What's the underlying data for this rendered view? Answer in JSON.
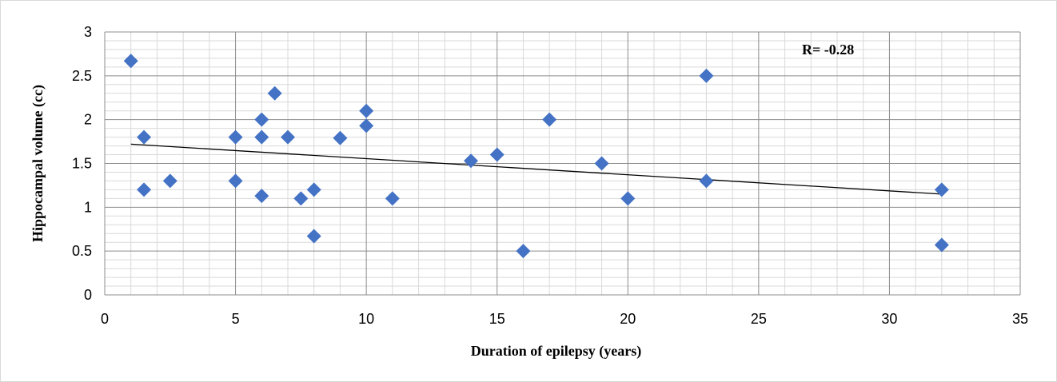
{
  "chart_data": {
    "type": "scatter",
    "xlabel": "Duration of epilepsy (years)",
    "ylabel": "Hippocampal volume (cc)",
    "xlim": [
      0,
      35
    ],
    "ylim": [
      0,
      3
    ],
    "x_ticks": [
      0,
      5,
      10,
      15,
      20,
      25,
      30,
      35
    ],
    "y_ticks": [
      0,
      0.5,
      1,
      1.5,
      2,
      2.5,
      3
    ],
    "x_tick_labels": [
      "0",
      "5",
      "10",
      "15",
      "20",
      "25",
      "30",
      "35"
    ],
    "y_tick_labels": [
      "0",
      "0.5",
      "1",
      "1.5",
      "2",
      "2.5",
      "3"
    ],
    "grid": true,
    "annotation": "R= -0.28",
    "marker": "diamond",
    "marker_color": "#4472c4",
    "trendline": {
      "type": "linear",
      "x": [
        1,
        32
      ],
      "y": [
        1.72,
        1.15
      ]
    },
    "points": [
      {
        "x": 1,
        "y": 2.67
      },
      {
        "x": 1.5,
        "y": 1.8
      },
      {
        "x": 1.5,
        "y": 1.2
      },
      {
        "x": 2.5,
        "y": 1.3
      },
      {
        "x": 5,
        "y": 1.8
      },
      {
        "x": 5,
        "y": 1.3
      },
      {
        "x": 6,
        "y": 2.0
      },
      {
        "x": 6,
        "y": 1.8
      },
      {
        "x": 6,
        "y": 1.13
      },
      {
        "x": 6.5,
        "y": 2.3
      },
      {
        "x": 7,
        "y": 1.8
      },
      {
        "x": 7.5,
        "y": 1.1
      },
      {
        "x": 8,
        "y": 1.2
      },
      {
        "x": 8,
        "y": 0.67
      },
      {
        "x": 9,
        "y": 1.79
      },
      {
        "x": 10,
        "y": 2.1
      },
      {
        "x": 10,
        "y": 1.93
      },
      {
        "x": 11,
        "y": 1.1
      },
      {
        "x": 14,
        "y": 1.53
      },
      {
        "x": 15,
        "y": 1.6
      },
      {
        "x": 16,
        "y": 0.5
      },
      {
        "x": 17,
        "y": 2.0
      },
      {
        "x": 19,
        "y": 1.5
      },
      {
        "x": 20,
        "y": 1.1
      },
      {
        "x": 23,
        "y": 2.5
      },
      {
        "x": 23,
        "y": 1.3
      },
      {
        "x": 32,
        "y": 1.2
      },
      {
        "x": 32,
        "y": 0.57
      }
    ]
  }
}
